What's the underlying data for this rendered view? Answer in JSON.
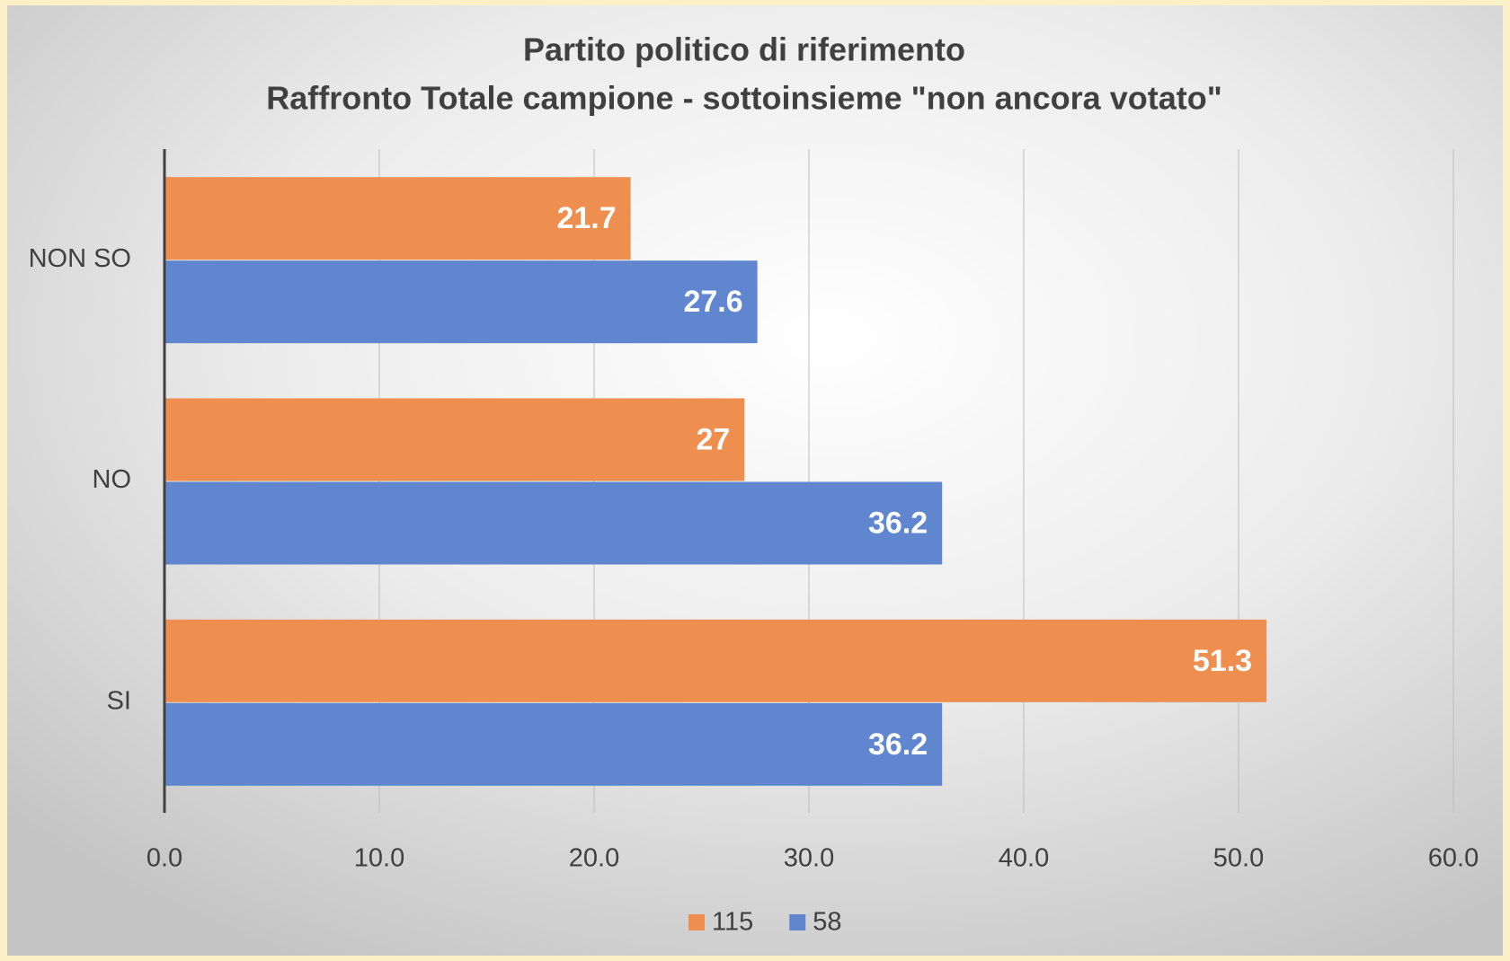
{
  "chart_data": {
    "type": "bar",
    "orientation": "horizontal",
    "title": "Partito politico di riferimento",
    "subtitle": "Raffronto Totale campione - sottoinsieme \"non ancora votato\"",
    "categories": [
      "NON SO",
      "NO",
      "SI"
    ],
    "series": [
      {
        "name": "115",
        "color": "#ef8f4f",
        "values": [
          21.7,
          27,
          51.3
        ]
      },
      {
        "name": "58",
        "color": "#6086cf",
        "values": [
          27.6,
          36.2,
          36.2
        ]
      }
    ],
    "xlim": [
      0,
      60
    ],
    "xticks": [
      {
        "value": 0,
        "label": "0.0"
      },
      {
        "value": 10,
        "label": "10.0"
      },
      {
        "value": 20,
        "label": "20.0"
      },
      {
        "value": 30,
        "label": "30.0"
      },
      {
        "value": 40,
        "label": "40.0"
      },
      {
        "value": 50,
        "label": "50.0"
      },
      {
        "value": 60,
        "label": "60.0"
      }
    ],
    "grid": true,
    "legend": "bottom"
  }
}
